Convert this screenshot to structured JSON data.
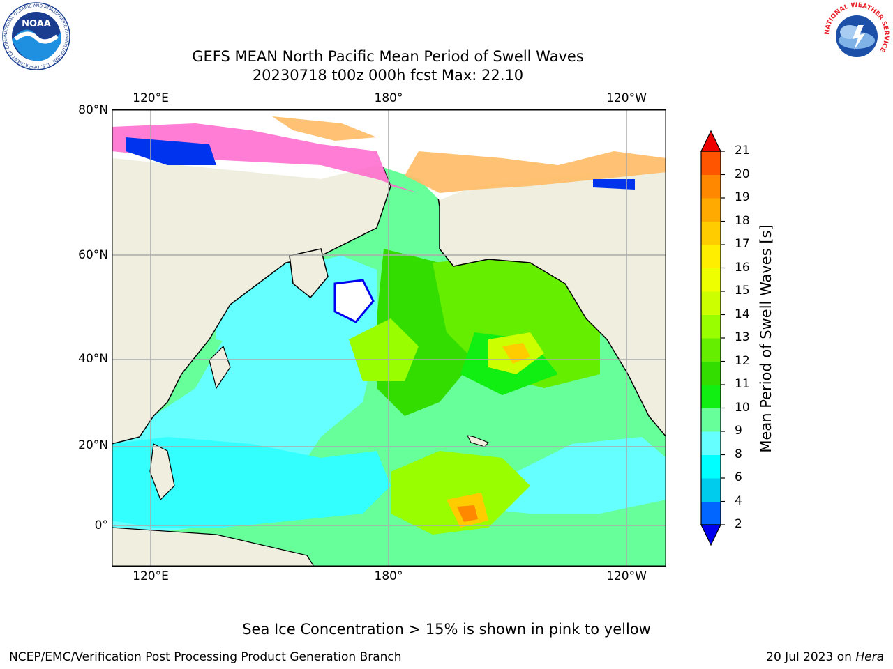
{
  "title": {
    "line1": "GEFS MEAN North Pacific Mean Period of Swell Waves",
    "line2": "20230718 t00z 000h fcst   Max: 22.10"
  },
  "axes": {
    "top_ticks": [
      "120°E",
      "180°",
      "120°W"
    ],
    "bottom_ticks": [
      "120°E",
      "180°",
      "120°W"
    ],
    "left_ticks": [
      "80°N",
      "60°N",
      "40°N",
      "20°N",
      "0°"
    ]
  },
  "colorbar": {
    "title": "Mean Period of Swell Waves [s]",
    "ticks": [
      "2",
      "4",
      "6",
      "8",
      "9",
      "10",
      "11",
      "12",
      "13",
      "14",
      "15",
      "16",
      "17",
      "18",
      "19",
      "20",
      "21"
    ],
    "colors": [
      "#0000ee",
      "#0066ff",
      "#00ccee",
      "#00ffff",
      "#66ffff",
      "#66ff99",
      "#11ee11",
      "#33dd00",
      "#66ee00",
      "#99ff00",
      "#ccff00",
      "#eeff00",
      "#ffee00",
      "#ffcc00",
      "#ffaa00",
      "#ff8800",
      "#ff5500",
      "#ff2200",
      "#ee0000"
    ],
    "extend_min_color": "#0000ee",
    "extend_max_color": "#ee0000"
  },
  "caption": "Sea Ice Concentration > 15% is shown in pink to yellow",
  "credit_left": "NCEP/EMC/Verification Post Processing Product Generation Branch",
  "credit_right_text": "20 Jul 2023 on",
  "credit_right_host": "Hera",
  "logos": {
    "noaa_text": "NOAA",
    "noaa_ring": "NATIONAL OCEANIC AND ATMOSPHERIC ADMINISTRATION · U.S. DEPARTMENT OF COMMERCE ·",
    "nws_ring": "NATIONAL WEATHER SERVICE"
  },
  "map_colors": {
    "land": "#efeedf",
    "ice_pink": "#ff66cc",
    "ice_orange": "#ffbb66"
  }
}
